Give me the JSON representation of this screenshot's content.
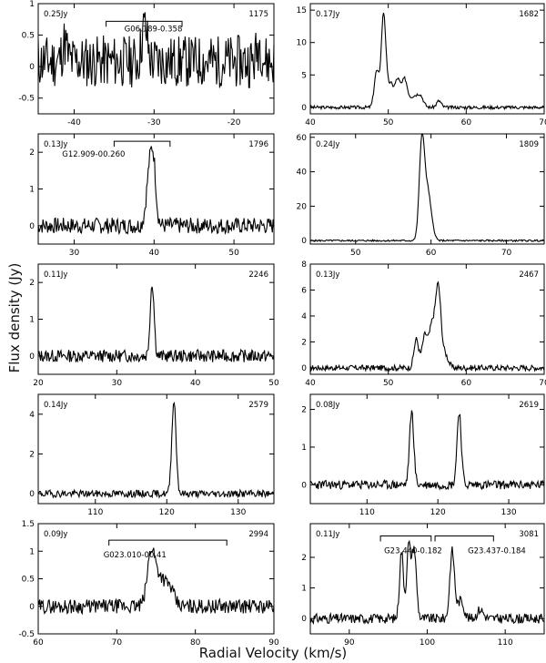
{
  "figure": {
    "y_label": "Flux density (Jy)",
    "x_label": "Radial Velocity (km/s)"
  },
  "chart_data": [
    {
      "type": "line",
      "id": "1175",
      "rms_label": "0.25Jy",
      "number_label": "1175",
      "xlim": [
        -44.5,
        -15
      ],
      "ylim": [
        -0.75,
        1
      ],
      "xticks": [
        -40,
        -30,
        -20
      ],
      "yticks": [
        -0.5,
        0,
        0.5,
        1
      ],
      "ytick_labels": [
        "-0.5",
        "0",
        "0.5",
        "1"
      ],
      "bracket": {
        "label": "G06.189-0.358",
        "x_range": [
          -36,
          -26.5
        ],
        "y": 0.72
      },
      "noise": {
        "amp": 0.42,
        "seed": 11,
        "baseline": 0.08
      },
      "peaks": [
        [
          -31.2,
          0.55,
          0.35
        ],
        [
          -41.2,
          0.3,
          0.3
        ],
        [
          -16.8,
          0.3,
          0.3
        ]
      ]
    },
    {
      "type": "line",
      "id": "1682",
      "rms_label": "0.17Jy",
      "number_label": "1682",
      "xlim": [
        40,
        70
      ],
      "ylim": [
        -1,
        16
      ],
      "xticks": [
        40,
        50,
        60,
        70
      ],
      "yticks": [
        0,
        5,
        10,
        15
      ],
      "ytick_labels": [
        "0",
        "5",
        "10",
        "15"
      ],
      "noise": {
        "amp": 0.25,
        "seed": 3,
        "baseline": 0
      },
      "peaks": [
        [
          48.5,
          5.5,
          0.3
        ],
        [
          49.4,
          14.5,
          0.3
        ],
        [
          50.3,
          3.5,
          0.35
        ],
        [
          51.2,
          4.2,
          0.35
        ],
        [
          52.1,
          4.2,
          0.35
        ],
        [
          53.2,
          1.6,
          0.5
        ],
        [
          54.1,
          1.7,
          0.4
        ],
        [
          56.5,
          1.0,
          0.3
        ]
      ]
    },
    {
      "type": "line",
      "id": "1796",
      "rms_label": "0.13Jy",
      "number_label": "1796",
      "xlim": [
        25.5,
        55
      ],
      "ylim": [
        -0.5,
        2.5
      ],
      "xticks": [
        30,
        40,
        50
      ],
      "yticks": [
        0,
        1,
        2
      ],
      "ytick_labels": [
        "0",
        "1",
        "2"
      ],
      "bracket": {
        "label": "G12.909-00.260",
        "x_range": [
          35,
          42
        ],
        "y": 2.3
      },
      "noise": {
        "amp": 0.22,
        "seed": 7,
        "baseline": 0
      },
      "peaks": [
        [
          39.6,
          1.9,
          0.45
        ],
        [
          40.0,
          0.55,
          0.25
        ]
      ]
    },
    {
      "type": "line",
      "id": "1809",
      "rms_label": "0.24Jy",
      "number_label": "1809",
      "xlim": [
        44,
        75
      ],
      "ylim": [
        -2,
        62
      ],
      "xticks": [
        50,
        60,
        70
      ],
      "yticks": [
        0,
        20,
        40,
        60
      ],
      "ytick_labels": [
        "0",
        "20",
        "40",
        "60"
      ],
      "noise": {
        "amp": 0.5,
        "seed": 5,
        "baseline": 0
      },
      "peaks": [
        [
          58.8,
          59,
          0.35
        ],
        [
          59.6,
          27,
          0.4
        ],
        [
          60.3,
          3,
          0.3
        ]
      ]
    },
    {
      "type": "line",
      "id": "2246",
      "rms_label": "0.11Jy",
      "number_label": "2246",
      "xlim": [
        20,
        50
      ],
      "ylim": [
        -0.5,
        2.5
      ],
      "xticks": [
        20,
        30,
        40,
        50
      ],
      "yticks": [
        0,
        1,
        2
      ],
      "ytick_labels": [
        "0",
        "1",
        "2"
      ],
      "noise": {
        "amp": 0.17,
        "seed": 13,
        "baseline": 0
      },
      "peaks": [
        [
          34.5,
          2.0,
          0.25
        ]
      ]
    },
    {
      "type": "line",
      "id": "2467",
      "rms_label": "0.13Jy",
      "number_label": "2467",
      "xlim": [
        40,
        70
      ],
      "ylim": [
        -0.5,
        8
      ],
      "xticks": [
        40,
        50,
        60,
        70
      ],
      "yticks": [
        0,
        2,
        4,
        6,
        8
      ],
      "ytick_labels": [
        "0",
        "2",
        "4",
        "6",
        "8"
      ],
      "noise": {
        "amp": 0.22,
        "seed": 17,
        "baseline": 0
      },
      "peaks": [
        [
          53.6,
          2.2,
          0.3
        ],
        [
          54.7,
          2.5,
          0.35
        ],
        [
          55.6,
          3.1,
          0.35
        ],
        [
          56.4,
          6.2,
          0.35
        ],
        [
          57.3,
          1.0,
          0.4
        ]
      ]
    },
    {
      "type": "line",
      "id": "2579",
      "rms_label": "0.14Jy",
      "number_label": "2579",
      "xlim": [
        102,
        135
      ],
      "ylim": [
        -0.5,
        5
      ],
      "xticks": [
        110,
        120,
        130
      ],
      "yticks": [
        0,
        2,
        4
      ],
      "ytick_labels": [
        "0",
        "2",
        "4"
      ],
      "noise": {
        "amp": 0.18,
        "seed": 19,
        "baseline": 0
      },
      "peaks": [
        [
          121.0,
          4.7,
          0.3
        ]
      ]
    },
    {
      "type": "line",
      "id": "2619",
      "rms_label": "0.08Jy",
      "number_label": "2619",
      "xlim": [
        102,
        135
      ],
      "ylim": [
        -0.5,
        2.4
      ],
      "xticks": [
        110,
        120,
        130
      ],
      "yticks": [
        0,
        1,
        2
      ],
      "ytick_labels": [
        "0",
        "1",
        "2"
      ],
      "noise": {
        "amp": 0.12,
        "seed": 23,
        "baseline": 0
      },
      "peaks": [
        [
          116.3,
          1.95,
          0.3
        ],
        [
          123.0,
          1.95,
          0.3
        ]
      ]
    },
    {
      "type": "line",
      "id": "2994",
      "rms_label": "0.09Jy",
      "number_label": "2994",
      "xlim": [
        60,
        90
      ],
      "ylim": [
        -0.5,
        1.5
      ],
      "xticks": [
        60,
        70,
        80,
        90
      ],
      "yticks": [
        -0.5,
        0,
        0.5,
        1,
        1.5
      ],
      "ytick_labels": [
        "-0.5",
        "0",
        "0.5",
        "1",
        "1.5"
      ],
      "bracket": {
        "label": "G023.010-00.41",
        "x_range": [
          69,
          84
        ],
        "y": 1.2
      },
      "noise": {
        "amp": 0.13,
        "seed": 29,
        "baseline": 0
      },
      "peaks": [
        [
          74.4,
          1.0,
          0.5
        ],
        [
          75.6,
          0.5,
          0.6
        ],
        [
          76.8,
          0.3,
          0.5
        ]
      ]
    },
    {
      "type": "line",
      "id": "3081",
      "rms_label": "0.11Jy",
      "number_label": "3081",
      "xlim": [
        85,
        115
      ],
      "ylim": [
        -0.5,
        3.1
      ],
      "xticks": [
        90,
        100,
        110
      ],
      "yticks": [
        0,
        1,
        2
      ],
      "ytick_labels": [
        "0",
        "1",
        "2"
      ],
      "bracket": {
        "label": "G23.440-0.182",
        "x_range": [
          94,
          100.5
        ],
        "y": 2.7
      },
      "bracket2": {
        "label": "G23.437-0.184",
        "x_range": [
          101,
          108.5
        ],
        "y": 2.7
      },
      "noise": {
        "amp": 0.16,
        "seed": 31,
        "baseline": 0
      },
      "peaks": [
        [
          96.7,
          2.2,
          0.25
        ],
        [
          97.6,
          2.3,
          0.25
        ],
        [
          98.3,
          2.3,
          0.3
        ],
        [
          103.2,
          2.2,
          0.3
        ],
        [
          104.3,
          0.6,
          0.4
        ],
        [
          106.8,
          0.3,
          0.4
        ]
      ]
    }
  ]
}
